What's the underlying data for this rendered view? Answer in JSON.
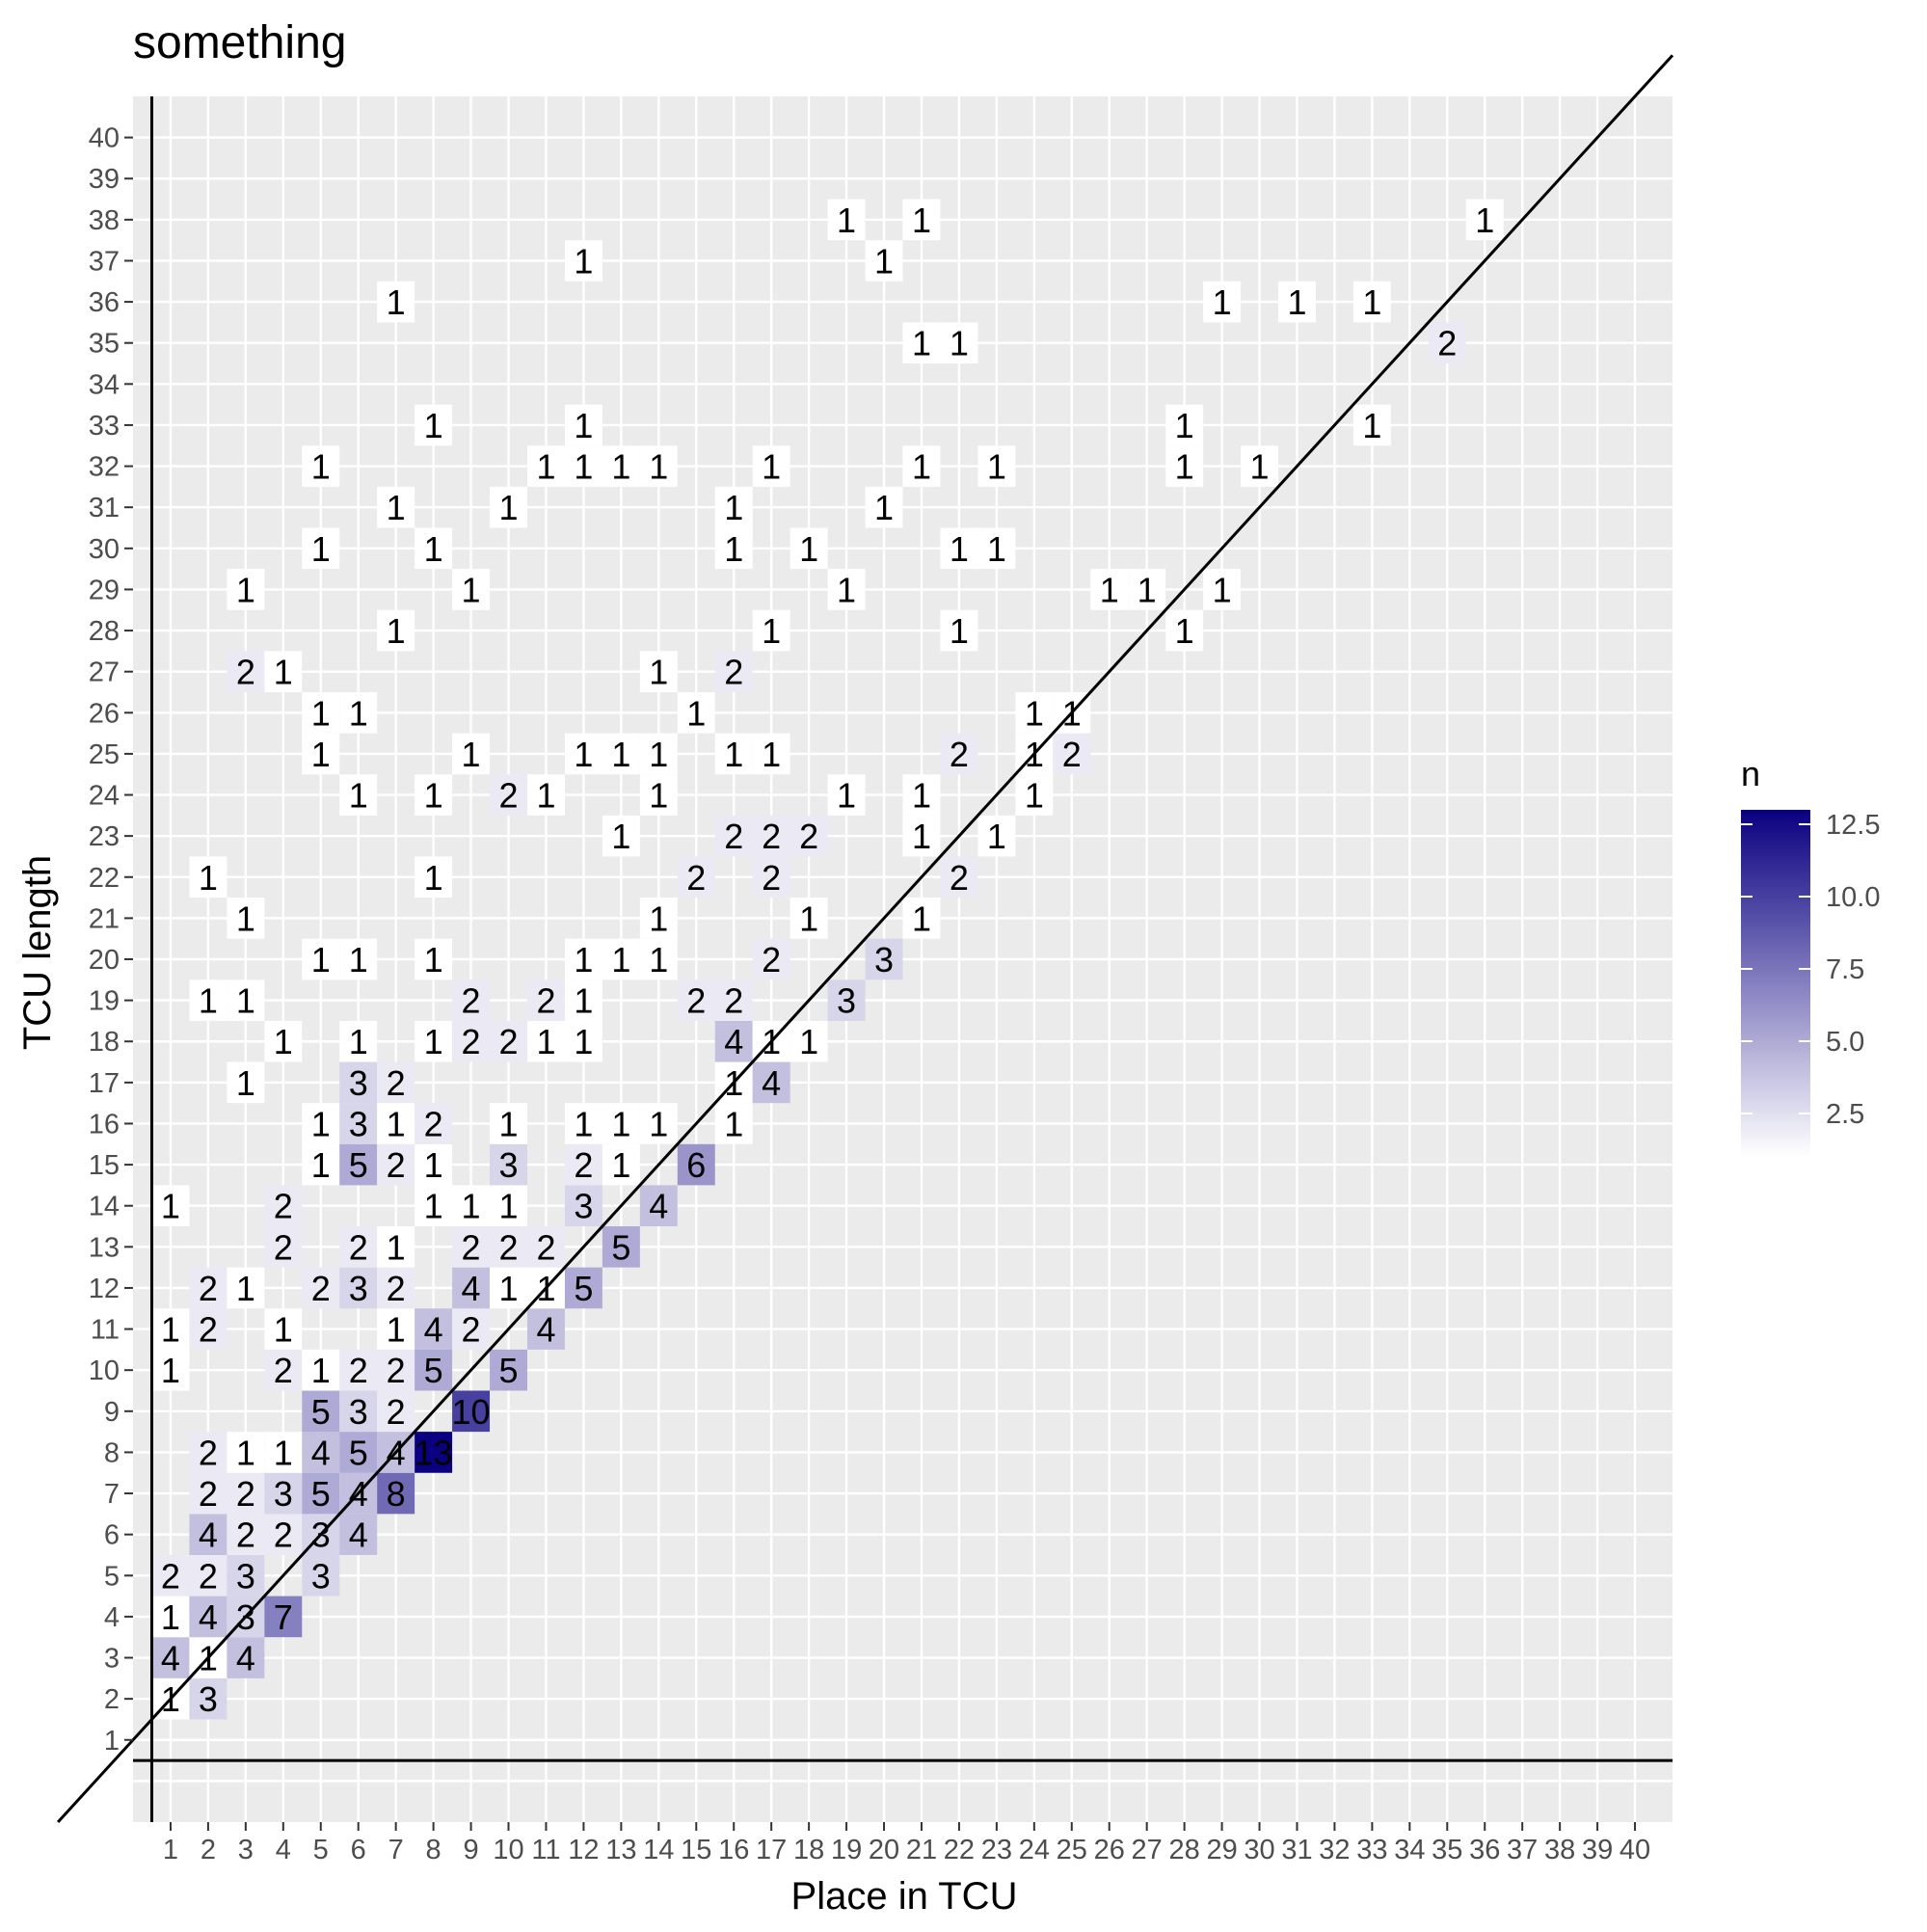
{
  "chart_data": {
    "type": "heatmap",
    "title": "something",
    "xlabel": "Place in TCU",
    "ylabel": "TCU length",
    "xlim": [
      0,
      41
    ],
    "ylim": [
      -1,
      41
    ],
    "x_ticks": [
      1,
      2,
      3,
      4,
      5,
      6,
      7,
      8,
      9,
      10,
      11,
      12,
      13,
      14,
      15,
      16,
      17,
      18,
      19,
      20,
      21,
      22,
      23,
      24,
      25,
      26,
      27,
      28,
      29,
      30,
      31,
      32,
      33,
      34,
      35,
      36,
      37,
      38,
      39,
      40
    ],
    "y_ticks": [
      1,
      2,
      3,
      4,
      5,
      6,
      7,
      8,
      9,
      10,
      11,
      12,
      13,
      14,
      15,
      16,
      17,
      18,
      19,
      20,
      21,
      22,
      23,
      24,
      25,
      26,
      27,
      28,
      29,
      30,
      31,
      32,
      33,
      34,
      35,
      36,
      37,
      38,
      39,
      40
    ],
    "grid": true,
    "reference_lines": {
      "vertical_x": 0.5,
      "horizontal_y": 0.5,
      "diagonal": "y = x + 1"
    },
    "colors": {
      "panel": "#EBEBEB",
      "grid": "#FFFFFF",
      "low": "#FFFFFF",
      "high": "#0A0080",
      "line": "#000000"
    },
    "legend": {
      "title": "n",
      "placement": "right",
      "min": 1,
      "max": 13,
      "breaks": [
        12.5,
        10.0,
        7.5,
        5.0,
        2.5
      ],
      "break_labels": [
        "12.5",
        "10.0",
        "7.5",
        "5.0",
        "2.5"
      ]
    },
    "cells": [
      {
        "x": 1,
        "y": 2,
        "n": 1
      },
      {
        "x": 2,
        "y": 2,
        "n": 3
      },
      {
        "x": 1,
        "y": 3,
        "n": 4
      },
      {
        "x": 2,
        "y": 3,
        "n": 1
      },
      {
        "x": 3,
        "y": 3,
        "n": 4
      },
      {
        "x": 1,
        "y": 4,
        "n": 1
      },
      {
        "x": 2,
        "y": 4,
        "n": 4
      },
      {
        "x": 3,
        "y": 4,
        "n": 3
      },
      {
        "x": 4,
        "y": 4,
        "n": 7
      },
      {
        "x": 1,
        "y": 5,
        "n": 2
      },
      {
        "x": 2,
        "y": 5,
        "n": 2
      },
      {
        "x": 3,
        "y": 5,
        "n": 3
      },
      {
        "x": 5,
        "y": 5,
        "n": 3
      },
      {
        "x": 2,
        "y": 6,
        "n": 4
      },
      {
        "x": 3,
        "y": 6,
        "n": 2
      },
      {
        "x": 4,
        "y": 6,
        "n": 2
      },
      {
        "x": 5,
        "y": 6,
        "n": 3
      },
      {
        "x": 6,
        "y": 6,
        "n": 4
      },
      {
        "x": 2,
        "y": 7,
        "n": 2
      },
      {
        "x": 3,
        "y": 7,
        "n": 2
      },
      {
        "x": 4,
        "y": 7,
        "n": 3
      },
      {
        "x": 5,
        "y": 7,
        "n": 5
      },
      {
        "x": 6,
        "y": 7,
        "n": 4
      },
      {
        "x": 7,
        "y": 7,
        "n": 8
      },
      {
        "x": 2,
        "y": 8,
        "n": 2
      },
      {
        "x": 3,
        "y": 8,
        "n": 1
      },
      {
        "x": 4,
        "y": 8,
        "n": 1
      },
      {
        "x": 5,
        "y": 8,
        "n": 4
      },
      {
        "x": 6,
        "y": 8,
        "n": 5
      },
      {
        "x": 7,
        "y": 8,
        "n": 4
      },
      {
        "x": 8,
        "y": 8,
        "n": 13
      },
      {
        "x": 5,
        "y": 9,
        "n": 5
      },
      {
        "x": 6,
        "y": 9,
        "n": 3
      },
      {
        "x": 7,
        "y": 9,
        "n": 2
      },
      {
        "x": 9,
        "y": 9,
        "n": 10
      },
      {
        "x": 1,
        "y": 10,
        "n": 1
      },
      {
        "x": 4,
        "y": 10,
        "n": 2
      },
      {
        "x": 5,
        "y": 10,
        "n": 1
      },
      {
        "x": 6,
        "y": 10,
        "n": 2
      },
      {
        "x": 7,
        "y": 10,
        "n": 2
      },
      {
        "x": 8,
        "y": 10,
        "n": 5
      },
      {
        "x": 10,
        "y": 10,
        "n": 5
      },
      {
        "x": 1,
        "y": 11,
        "n": 1
      },
      {
        "x": 2,
        "y": 11,
        "n": 2
      },
      {
        "x": 4,
        "y": 11,
        "n": 1
      },
      {
        "x": 7,
        "y": 11,
        "n": 1
      },
      {
        "x": 8,
        "y": 11,
        "n": 4
      },
      {
        "x": 9,
        "y": 11,
        "n": 2
      },
      {
        "x": 11,
        "y": 11,
        "n": 4
      },
      {
        "x": 2,
        "y": 12,
        "n": 2
      },
      {
        "x": 3,
        "y": 12,
        "n": 1
      },
      {
        "x": 5,
        "y": 12,
        "n": 2
      },
      {
        "x": 6,
        "y": 12,
        "n": 3
      },
      {
        "x": 7,
        "y": 12,
        "n": 2
      },
      {
        "x": 9,
        "y": 12,
        "n": 4
      },
      {
        "x": 10,
        "y": 12,
        "n": 1
      },
      {
        "x": 11,
        "y": 12,
        "n": 1
      },
      {
        "x": 12,
        "y": 12,
        "n": 5
      },
      {
        "x": 4,
        "y": 13,
        "n": 2
      },
      {
        "x": 6,
        "y": 13,
        "n": 2
      },
      {
        "x": 7,
        "y": 13,
        "n": 1
      },
      {
        "x": 9,
        "y": 13,
        "n": 2
      },
      {
        "x": 10,
        "y": 13,
        "n": 2
      },
      {
        "x": 11,
        "y": 13,
        "n": 2
      },
      {
        "x": 13,
        "y": 13,
        "n": 5
      },
      {
        "x": 1,
        "y": 14,
        "n": 1
      },
      {
        "x": 4,
        "y": 14,
        "n": 2
      },
      {
        "x": 8,
        "y": 14,
        "n": 1
      },
      {
        "x": 9,
        "y": 14,
        "n": 1
      },
      {
        "x": 10,
        "y": 14,
        "n": 1
      },
      {
        "x": 12,
        "y": 14,
        "n": 3
      },
      {
        "x": 14,
        "y": 14,
        "n": 4
      },
      {
        "x": 5,
        "y": 15,
        "n": 1
      },
      {
        "x": 6,
        "y": 15,
        "n": 5
      },
      {
        "x": 7,
        "y": 15,
        "n": 2
      },
      {
        "x": 8,
        "y": 15,
        "n": 1
      },
      {
        "x": 10,
        "y": 15,
        "n": 3
      },
      {
        "x": 12,
        "y": 15,
        "n": 2
      },
      {
        "x": 13,
        "y": 15,
        "n": 1
      },
      {
        "x": 15,
        "y": 15,
        "n": 6
      },
      {
        "x": 5,
        "y": 16,
        "n": 1
      },
      {
        "x": 6,
        "y": 16,
        "n": 3
      },
      {
        "x": 7,
        "y": 16,
        "n": 1
      },
      {
        "x": 8,
        "y": 16,
        "n": 2
      },
      {
        "x": 10,
        "y": 16,
        "n": 1
      },
      {
        "x": 12,
        "y": 16,
        "n": 1
      },
      {
        "x": 13,
        "y": 16,
        "n": 1
      },
      {
        "x": 14,
        "y": 16,
        "n": 1
      },
      {
        "x": 16,
        "y": 16,
        "n": 1
      },
      {
        "x": 3,
        "y": 17,
        "n": 1
      },
      {
        "x": 6,
        "y": 17,
        "n": 3
      },
      {
        "x": 7,
        "y": 17,
        "n": 2
      },
      {
        "x": 16,
        "y": 17,
        "n": 1
      },
      {
        "x": 17,
        "y": 17,
        "n": 4
      },
      {
        "x": 4,
        "y": 18,
        "n": 1
      },
      {
        "x": 6,
        "y": 18,
        "n": 1
      },
      {
        "x": 8,
        "y": 18,
        "n": 1
      },
      {
        "x": 9,
        "y": 18,
        "n": 2
      },
      {
        "x": 10,
        "y": 18,
        "n": 2
      },
      {
        "x": 11,
        "y": 18,
        "n": 1
      },
      {
        "x": 12,
        "y": 18,
        "n": 1
      },
      {
        "x": 16,
        "y": 18,
        "n": 4
      },
      {
        "x": 17,
        "y": 18,
        "n": 1
      },
      {
        "x": 18,
        "y": 18,
        "n": 1
      },
      {
        "x": 2,
        "y": 19,
        "n": 1
      },
      {
        "x": 3,
        "y": 19,
        "n": 1
      },
      {
        "x": 9,
        "y": 19,
        "n": 2
      },
      {
        "x": 11,
        "y": 19,
        "n": 2
      },
      {
        "x": 12,
        "y": 19,
        "n": 1
      },
      {
        "x": 15,
        "y": 19,
        "n": 2
      },
      {
        "x": 16,
        "y": 19,
        "n": 2
      },
      {
        "x": 19,
        "y": 19,
        "n": 3
      },
      {
        "x": 5,
        "y": 20,
        "n": 1
      },
      {
        "x": 6,
        "y": 20,
        "n": 1
      },
      {
        "x": 8,
        "y": 20,
        "n": 1
      },
      {
        "x": 12,
        "y": 20,
        "n": 1
      },
      {
        "x": 13,
        "y": 20,
        "n": 1
      },
      {
        "x": 14,
        "y": 20,
        "n": 1
      },
      {
        "x": 17,
        "y": 20,
        "n": 2
      },
      {
        "x": 20,
        "y": 20,
        "n": 3
      },
      {
        "x": 3,
        "y": 21,
        "n": 1
      },
      {
        "x": 14,
        "y": 21,
        "n": 1
      },
      {
        "x": 18,
        "y": 21,
        "n": 1
      },
      {
        "x": 21,
        "y": 21,
        "n": 1
      },
      {
        "x": 2,
        "y": 22,
        "n": 1
      },
      {
        "x": 8,
        "y": 22,
        "n": 1
      },
      {
        "x": 15,
        "y": 22,
        "n": 2
      },
      {
        "x": 17,
        "y": 22,
        "n": 2
      },
      {
        "x": 22,
        "y": 22,
        "n": 2
      },
      {
        "x": 13,
        "y": 23,
        "n": 1
      },
      {
        "x": 16,
        "y": 23,
        "n": 2
      },
      {
        "x": 17,
        "y": 23,
        "n": 2
      },
      {
        "x": 18,
        "y": 23,
        "n": 2
      },
      {
        "x": 21,
        "y": 23,
        "n": 1
      },
      {
        "x": 23,
        "y": 23,
        "n": 1
      },
      {
        "x": 6,
        "y": 24,
        "n": 1
      },
      {
        "x": 8,
        "y": 24,
        "n": 1
      },
      {
        "x": 10,
        "y": 24,
        "n": 2
      },
      {
        "x": 11,
        "y": 24,
        "n": 1
      },
      {
        "x": 14,
        "y": 24,
        "n": 1
      },
      {
        "x": 19,
        "y": 24,
        "n": 1
      },
      {
        "x": 21,
        "y": 24,
        "n": 1
      },
      {
        "x": 24,
        "y": 24,
        "n": 1
      },
      {
        "x": 5,
        "y": 25,
        "n": 1
      },
      {
        "x": 9,
        "y": 25,
        "n": 1
      },
      {
        "x": 12,
        "y": 25,
        "n": 1
      },
      {
        "x": 13,
        "y": 25,
        "n": 1
      },
      {
        "x": 14,
        "y": 25,
        "n": 1
      },
      {
        "x": 16,
        "y": 25,
        "n": 1
      },
      {
        "x": 17,
        "y": 25,
        "n": 1
      },
      {
        "x": 22,
        "y": 25,
        "n": 2
      },
      {
        "x": 24,
        "y": 25,
        "n": 1
      },
      {
        "x": 25,
        "y": 25,
        "n": 2
      },
      {
        "x": 5,
        "y": 26,
        "n": 1
      },
      {
        "x": 6,
        "y": 26,
        "n": 1
      },
      {
        "x": 15,
        "y": 26,
        "n": 1
      },
      {
        "x": 24,
        "y": 26,
        "n": 1
      },
      {
        "x": 25,
        "y": 26,
        "n": 1
      },
      {
        "x": 3,
        "y": 27,
        "n": 2
      },
      {
        "x": 4,
        "y": 27,
        "n": 1
      },
      {
        "x": 14,
        "y": 27,
        "n": 1
      },
      {
        "x": 16,
        "y": 27,
        "n": 2
      },
      {
        "x": 7,
        "y": 28,
        "n": 1
      },
      {
        "x": 17,
        "y": 28,
        "n": 1
      },
      {
        "x": 22,
        "y": 28,
        "n": 1
      },
      {
        "x": 28,
        "y": 28,
        "n": 1
      },
      {
        "x": 3,
        "y": 29,
        "n": 1
      },
      {
        "x": 9,
        "y": 29,
        "n": 1
      },
      {
        "x": 19,
        "y": 29,
        "n": 1
      },
      {
        "x": 26,
        "y": 29,
        "n": 1
      },
      {
        "x": 27,
        "y": 29,
        "n": 1
      },
      {
        "x": 29,
        "y": 29,
        "n": 1
      },
      {
        "x": 5,
        "y": 30,
        "n": 1
      },
      {
        "x": 8,
        "y": 30,
        "n": 1
      },
      {
        "x": 16,
        "y": 30,
        "n": 1
      },
      {
        "x": 18,
        "y": 30,
        "n": 1
      },
      {
        "x": 22,
        "y": 30,
        "n": 1
      },
      {
        "x": 23,
        "y": 30,
        "n": 1
      },
      {
        "x": 7,
        "y": 31,
        "n": 1
      },
      {
        "x": 10,
        "y": 31,
        "n": 1
      },
      {
        "x": 16,
        "y": 31,
        "n": 1
      },
      {
        "x": 20,
        "y": 31,
        "n": 1
      },
      {
        "x": 5,
        "y": 32,
        "n": 1
      },
      {
        "x": 11,
        "y": 32,
        "n": 1
      },
      {
        "x": 12,
        "y": 32,
        "n": 1
      },
      {
        "x": 13,
        "y": 32,
        "n": 1
      },
      {
        "x": 14,
        "y": 32,
        "n": 1
      },
      {
        "x": 17,
        "y": 32,
        "n": 1
      },
      {
        "x": 21,
        "y": 32,
        "n": 1
      },
      {
        "x": 23,
        "y": 32,
        "n": 1
      },
      {
        "x": 28,
        "y": 32,
        "n": 1
      },
      {
        "x": 30,
        "y": 32,
        "n": 1
      },
      {
        "x": 8,
        "y": 33,
        "n": 1
      },
      {
        "x": 12,
        "y": 33,
        "n": 1
      },
      {
        "x": 28,
        "y": 33,
        "n": 1
      },
      {
        "x": 33,
        "y": 33,
        "n": 1
      },
      {
        "x": 21,
        "y": 35,
        "n": 1
      },
      {
        "x": 22,
        "y": 35,
        "n": 1
      },
      {
        "x": 35,
        "y": 35,
        "n": 2
      },
      {
        "x": 7,
        "y": 36,
        "n": 1
      },
      {
        "x": 29,
        "y": 36,
        "n": 1
      },
      {
        "x": 31,
        "y": 36,
        "n": 1
      },
      {
        "x": 33,
        "y": 36,
        "n": 1
      },
      {
        "x": 12,
        "y": 37,
        "n": 1
      },
      {
        "x": 20,
        "y": 37,
        "n": 1
      },
      {
        "x": 19,
        "y": 38,
        "n": 1
      },
      {
        "x": 21,
        "y": 38,
        "n": 1
      },
      {
        "x": 36,
        "y": 38,
        "n": 1
      }
    ]
  }
}
